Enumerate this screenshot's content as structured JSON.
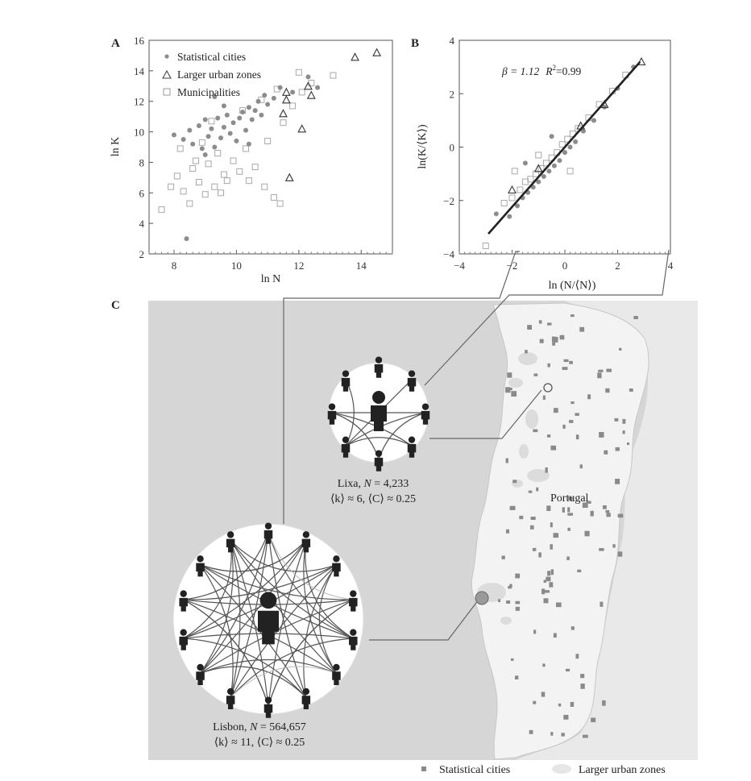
{
  "chart_data": [
    {
      "panel": "A",
      "type": "scatter",
      "xlabel": "ln N",
      "ylabel": "ln K",
      "xlim": [
        7.2,
        15.0
      ],
      "ylim": [
        2,
        16
      ],
      "xticks": [
        8,
        10,
        12,
        14
      ],
      "yticks": [
        2,
        4,
        6,
        8,
        10,
        12,
        14,
        16
      ],
      "legend_position": "top-left",
      "series": [
        {
          "name": "Statistical cities",
          "marker": "dot",
          "color": "#8c8c8c",
          "points": [
            [
              8.3,
              9.5
            ],
            [
              8.5,
              10.1
            ],
            [
              8.6,
              9.2
            ],
            [
              8.8,
              10.4
            ],
            [
              8.9,
              8.9
            ],
            [
              9.0,
              10.8
            ],
            [
              9.1,
              9.7
            ],
            [
              9.2,
              10.2
            ],
            [
              9.3,
              9.0
            ],
            [
              9.4,
              10.9
            ],
            [
              9.5,
              9.6
            ],
            [
              9.6,
              10.3
            ],
            [
              9.7,
              11.1
            ],
            [
              9.8,
              9.9
            ],
            [
              9.9,
              10.6
            ],
            [
              10.0,
              9.4
            ],
            [
              10.1,
              10.9
            ],
            [
              10.2,
              11.3
            ],
            [
              10.3,
              10.1
            ],
            [
              10.4,
              11.6
            ],
            [
              10.5,
              10.8
            ],
            [
              10.6,
              11.4
            ],
            [
              10.7,
              12.0
            ],
            [
              10.8,
              11.1
            ],
            [
              11.0,
              11.8
            ],
            [
              11.2,
              12.2
            ],
            [
              11.4,
              12.9
            ],
            [
              11.8,
              12.6
            ],
            [
              12.3,
              13.6
            ],
            [
              8.4,
              3.0
            ],
            [
              9.0,
              8.5
            ],
            [
              9.6,
              11.7
            ],
            [
              10.9,
              12.4
            ],
            [
              12.6,
              12.9
            ],
            [
              8.0,
              9.8
            ],
            [
              9.3,
              12.3
            ],
            [
              10.4,
              9.2
            ]
          ]
        },
        {
          "name": "Larger urban zones",
          "marker": "triangle",
          "color": "#444444",
          "points": [
            [
              11.5,
              11.2
            ],
            [
              11.6,
              12.1
            ],
            [
              11.6,
              12.6
            ],
            [
              12.3,
              13.0
            ],
            [
              12.4,
              12.4
            ],
            [
              12.1,
              10.2
            ],
            [
              11.7,
              7.0
            ],
            [
              13.8,
              14.9
            ],
            [
              14.5,
              15.2
            ]
          ]
        },
        {
          "name": "Municipalities",
          "marker": "square",
          "color": "#b0b0b0",
          "points": [
            [
              7.6,
              4.9
            ],
            [
              7.9,
              6.4
            ],
            [
              8.1,
              7.1
            ],
            [
              8.3,
              6.1
            ],
            [
              8.5,
              5.3
            ],
            [
              8.6,
              7.6
            ],
            [
              8.8,
              6.7
            ],
            [
              9.0,
              5.9
            ],
            [
              9.1,
              7.9
            ],
            [
              9.3,
              6.4
            ],
            [
              9.4,
              8.6
            ],
            [
              9.6,
              7.2
            ],
            [
              9.7,
              6.8
            ],
            [
              9.9,
              8.1
            ],
            [
              10.1,
              7.4
            ],
            [
              10.3,
              8.9
            ],
            [
              10.6,
              7.7
            ],
            [
              10.9,
              6.4
            ],
            [
              11.2,
              5.7
            ],
            [
              11.4,
              5.3
            ],
            [
              11.0,
              9.4
            ],
            [
              11.5,
              10.6
            ],
            [
              11.8,
              11.7
            ],
            [
              12.1,
              12.6
            ],
            [
              12.4,
              13.2
            ],
            [
              13.1,
              13.7
            ],
            [
              8.2,
              8.9
            ],
            [
              8.9,
              9.3
            ],
            [
              9.2,
              10.7
            ],
            [
              10.2,
              11.4
            ],
            [
              10.8,
              12.1
            ],
            [
              11.3,
              12.8
            ],
            [
              12.0,
              13.9
            ],
            [
              9.5,
              6.0
            ],
            [
              10.4,
              6.8
            ],
            [
              8.7,
              8.1
            ]
          ]
        }
      ]
    },
    {
      "panel": "B",
      "type": "scatter",
      "xlabel": "ln (N/⟨N⟩)",
      "ylabel": "ln(K/⟨K⟩)",
      "xlim": [
        -4,
        4
      ],
      "ylim": [
        -4,
        4
      ],
      "xticks": [
        -4,
        -2,
        0,
        2,
        4
      ],
      "yticks": [
        -4,
        -2,
        0,
        2,
        4
      ],
      "annotation": {
        "beta_text": "β = 1.12",
        "r2_label": "R",
        "r2_sup": "2",
        "r2_value": "=0.99"
      },
      "fit_line": {
        "slope": 1.12,
        "intercept": 0.0,
        "x_range": [
          -2.9,
          2.85
        ]
      },
      "points_grey": [
        [
          -3.0,
          -3.7
        ],
        [
          -2.6,
          -2.5
        ],
        [
          -2.3,
          -2.1
        ],
        [
          -2.1,
          -2.6
        ],
        [
          -2.0,
          -1.9
        ],
        [
          -1.8,
          -2.2
        ],
        [
          -1.7,
          -1.6
        ],
        [
          -1.6,
          -1.9
        ],
        [
          -1.5,
          -1.3
        ],
        [
          -1.4,
          -1.7
        ],
        [
          -1.3,
          -1.2
        ],
        [
          -1.2,
          -1.5
        ],
        [
          -1.1,
          -1.0
        ],
        [
          -1.0,
          -1.3
        ],
        [
          -0.9,
          -0.8
        ],
        [
          -0.8,
          -1.1
        ],
        [
          -0.7,
          -0.6
        ],
        [
          -0.6,
          -0.9
        ],
        [
          -0.5,
          -0.4
        ],
        [
          -0.4,
          -0.7
        ],
        [
          -0.3,
          -0.2
        ],
        [
          -0.2,
          -0.5
        ],
        [
          -0.1,
          0.1
        ],
        [
          0.0,
          -0.2
        ],
        [
          0.1,
          0.3
        ],
        [
          0.2,
          0.0
        ],
        [
          0.3,
          0.5
        ],
        [
          0.4,
          0.2
        ],
        [
          0.5,
          0.7
        ],
        [
          0.7,
          0.6
        ],
        [
          0.9,
          1.1
        ],
        [
          1.1,
          1.0
        ],
        [
          1.3,
          1.6
        ],
        [
          1.5,
          1.5
        ],
        [
          1.8,
          2.1
        ],
        [
          2.0,
          2.2
        ],
        [
          2.3,
          2.7
        ],
        [
          2.6,
          3.0
        ],
        [
          -1.9,
          -0.9
        ],
        [
          -1.5,
          -0.6
        ],
        [
          -1.0,
          -0.3
        ],
        [
          -0.5,
          0.4
        ],
        [
          0.2,
          -0.9
        ]
      ],
      "points_triangle": [
        [
          -2.0,
          -1.6
        ],
        [
          -1.0,
          -0.8
        ],
        [
          0.6,
          0.8
        ],
        [
          1.5,
          1.6
        ],
        [
          2.9,
          3.2
        ]
      ]
    }
  ],
  "panel_labels": {
    "a": "A",
    "b": "B",
    "c": "C"
  },
  "map": {
    "country_label": "Portugal",
    "lixa": {
      "name": "Lixa, ",
      "n_var": "N",
      "n_value": " = 4,233",
      "k_text": "⟨k⟩ ≈ 6, ⟨C⟩ ≈ 0.25"
    },
    "lisbon": {
      "name": "Lisbon, ",
      "n_var": "N",
      "n_value": " = 564,657",
      "k_text": "⟨k⟩ ≈ 11, ⟨C⟩ ≈ 0.25"
    },
    "legend": {
      "statistical": "Statistical cities",
      "larger": "Larger urban zones"
    },
    "colors": {
      "sea": "#d6d6d6",
      "land": "#f1f1f1",
      "city": "#8a8a8a",
      "urban_zone": "#dcdcdc"
    }
  }
}
